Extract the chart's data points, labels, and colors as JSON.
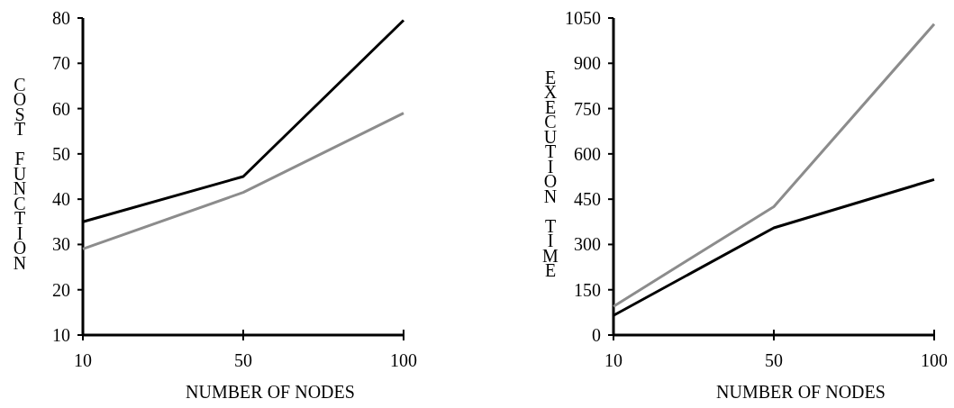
{
  "chart_data": [
    {
      "type": "line",
      "categories": [
        "10",
        "50",
        "100"
      ],
      "xlabel": "NUMBER OF NODES",
      "ylabel": "COST FUNCTION",
      "ylim": [
        10,
        80
      ],
      "yticks": [
        10,
        20,
        30,
        40,
        50,
        60,
        70,
        80
      ],
      "series": [
        {
          "color": "#000000",
          "values": [
            35,
            45,
            79.5
          ]
        },
        {
          "color": "#8c8c8c",
          "values": [
            29,
            41.5,
            59
          ]
        }
      ]
    },
    {
      "type": "line",
      "categories": [
        "10",
        "50",
        "100"
      ],
      "xlabel": "NUMBER OF NODES",
      "ylabel": "EXECUTION TIME",
      "ylim": [
        0,
        1050
      ],
      "yticks": [
        0,
        150,
        300,
        450,
        600,
        750,
        900,
        1050
      ],
      "series": [
        {
          "color": "#000000",
          "values": [
            65,
            355,
            515
          ]
        },
        {
          "color": "#8c8c8c",
          "values": [
            95,
            425,
            1030
          ]
        }
      ]
    }
  ]
}
